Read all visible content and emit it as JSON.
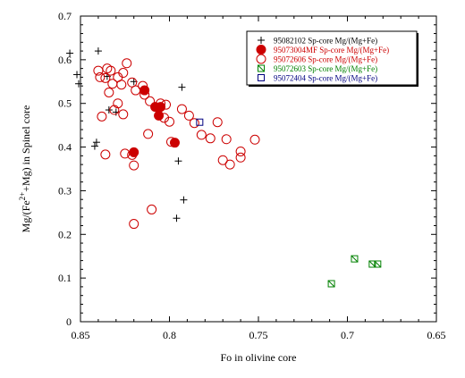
{
  "chart_data": {
    "type": "scatter",
    "xlabel": "Fo in olivine core",
    "ylabel_parts": [
      "Mg/(Fe",
      "2+",
      "+Mg) in Spinel core"
    ],
    "xlim": [
      0.85,
      0.65
    ],
    "ylim": [
      0,
      0.7
    ],
    "x_reversed": true,
    "xticks": [
      0.85,
      0.8,
      0.75,
      0.7,
      0.65
    ],
    "xtick_labels": [
      "0.85",
      "0.8",
      "0.75",
      "0.7",
      "0.65"
    ],
    "yticks": [
      0,
      0.1,
      0.2,
      0.3,
      0.4,
      0.5,
      0.6,
      0.7
    ],
    "ytick_labels": [
      "0",
      "0.1",
      "0.2",
      "0.3",
      "0.4",
      "0.5",
      "0.6",
      "0.7"
    ],
    "grid": false,
    "legend_position": "top-right",
    "series": [
      {
        "name": "95082102 Sp-core Mg/(Mg+Fe)",
        "marker": "plus",
        "color": "#000000",
        "points": [
          [
            0.856,
            0.615
          ],
          [
            0.851,
            0.545
          ],
          [
            0.84,
            0.62
          ],
          [
            0.852,
            0.566
          ],
          [
            0.842,
            0.402
          ],
          [
            0.841,
            0.411
          ],
          [
            0.834,
            0.485
          ],
          [
            0.835,
            0.562
          ],
          [
            0.793,
            0.537
          ],
          [
            0.795,
            0.368
          ],
          [
            0.792,
            0.279
          ],
          [
            0.796,
            0.237
          ],
          [
            0.82,
            0.55
          ],
          [
            0.83,
            0.48
          ]
        ]
      },
      {
        "name": "95073004MF Sp-core Mg/(Mg+Fe)",
        "marker": "filled-circle",
        "color": "#cc0000",
        "points": [
          [
            0.814,
            0.53
          ],
          [
            0.808,
            0.492
          ],
          [
            0.805,
            0.492
          ],
          [
            0.806,
            0.472
          ],
          [
            0.797,
            0.41
          ],
          [
            0.82,
            0.388
          ]
        ]
      },
      {
        "name": "95072606 Sp-core Mg/(Mg+Fe)",
        "marker": "open-circle",
        "color": "#cc0000",
        "points": [
          [
            0.84,
            0.575
          ],
          [
            0.836,
            0.558
          ],
          [
            0.833,
            0.575
          ],
          [
            0.829,
            0.56
          ],
          [
            0.826,
            0.57
          ],
          [
            0.824,
            0.592
          ],
          [
            0.832,
            0.545
          ],
          [
            0.839,
            0.56
          ],
          [
            0.835,
            0.58
          ],
          [
            0.827,
            0.543
          ],
          [
            0.821,
            0.548
          ],
          [
            0.815,
            0.54
          ],
          [
            0.819,
            0.53
          ],
          [
            0.814,
            0.52
          ],
          [
            0.811,
            0.505
          ],
          [
            0.805,
            0.5
          ],
          [
            0.802,
            0.497
          ],
          [
            0.793,
            0.487
          ],
          [
            0.789,
            0.472
          ],
          [
            0.786,
            0.455
          ],
          [
            0.834,
            0.525
          ],
          [
            0.838,
            0.47
          ],
          [
            0.831,
            0.485
          ],
          [
            0.829,
            0.5
          ],
          [
            0.826,
            0.475
          ],
          [
            0.836,
            0.383
          ],
          [
            0.825,
            0.385
          ],
          [
            0.82,
            0.358
          ],
          [
            0.812,
            0.43
          ],
          [
            0.803,
            0.467
          ],
          [
            0.8,
            0.458
          ],
          [
            0.782,
            0.428
          ],
          [
            0.777,
            0.42
          ],
          [
            0.77,
            0.37
          ],
          [
            0.768,
            0.418
          ],
          [
            0.766,
            0.36
          ],
          [
            0.76,
            0.39
          ],
          [
            0.76,
            0.376
          ],
          [
            0.752,
            0.417
          ],
          [
            0.773,
            0.457
          ],
          [
            0.81,
            0.257
          ],
          [
            0.82,
            0.224
          ],
          [
            0.821,
            0.382
          ],
          [
            0.799,
            0.412
          ]
        ]
      },
      {
        "name": "95072603 Sp-core Mg/(Mg+Fe)",
        "marker": "crossed-square",
        "color": "#008000",
        "points": [
          [
            0.709,
            0.087
          ],
          [
            0.696,
            0.144
          ],
          [
            0.686,
            0.132
          ],
          [
            0.683,
            0.132
          ]
        ]
      },
      {
        "name": "95072404 Sp-core Mg/(Mg+Fe)",
        "marker": "open-square",
        "color": "#000080",
        "points": [
          [
            0.783,
            0.457
          ]
        ]
      }
    ]
  }
}
